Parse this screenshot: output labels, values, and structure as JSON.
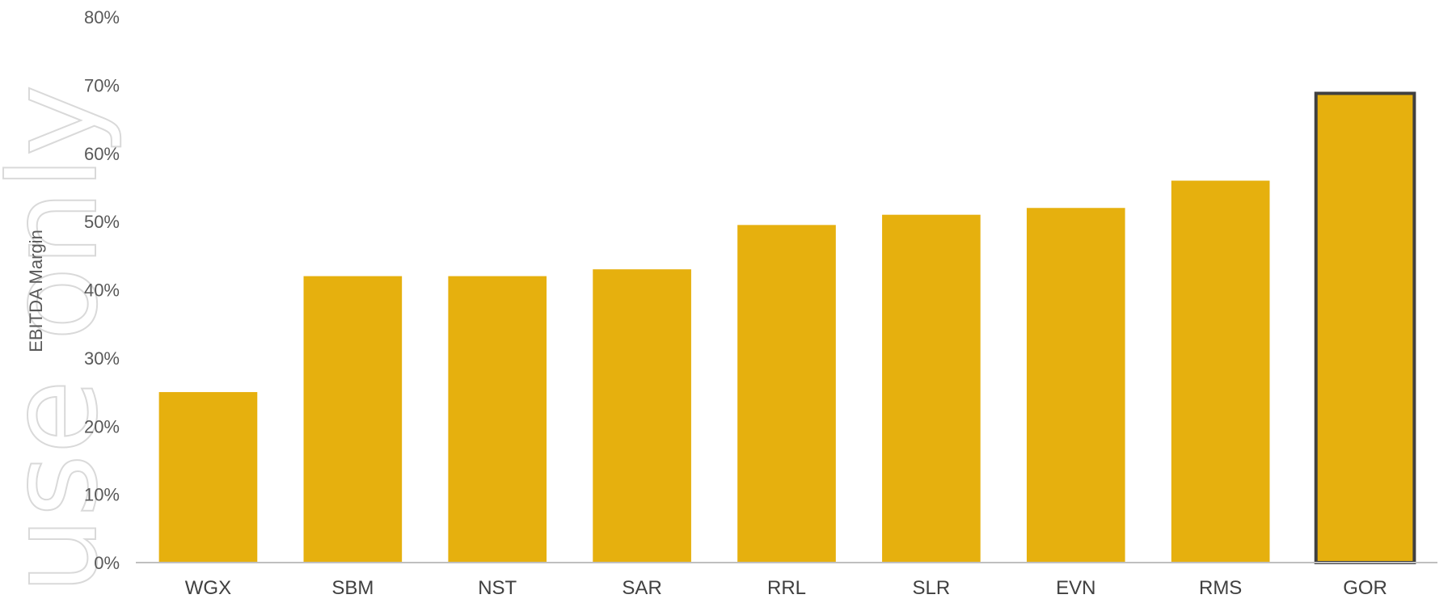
{
  "watermark_text": "use only",
  "chart_data": {
    "type": "bar",
    "ylabel": "EBITDA Margin",
    "ylim": [
      0,
      80
    ],
    "yticks": [
      "0%",
      "10%",
      "20%",
      "30%",
      "40%",
      "50%",
      "60%",
      "70%",
      "80%"
    ],
    "categories": [
      "WGX",
      "SBM",
      "NST",
      "SAR",
      "RRL",
      "SLR",
      "EVN",
      "RMS",
      "GOR"
    ],
    "values": [
      25,
      42,
      42,
      43,
      49.5,
      51,
      52,
      56,
      68.8
    ],
    "bar_color": "#E6B00E",
    "highlight": {
      "category": "GOR",
      "outline_color": "#404040"
    },
    "axis_color": "#BFBFBF",
    "grid": false,
    "legend": "none"
  }
}
